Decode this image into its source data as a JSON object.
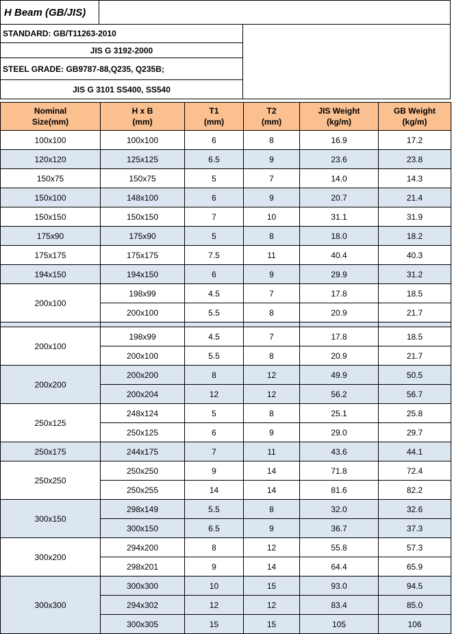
{
  "title": "H Beam (GB/JIS)",
  "standards": {
    "line1": "STANDARD:   GB/T11263-2010",
    "line2": "JIS G 3192-2000",
    "line3": "STEEL GRADE: GB9787-88,Q235, Q235B;",
    "line4": "JIS G 3101 SS400, SS540"
  },
  "headers": [
    [
      "Nominal",
      "Size(mm)"
    ],
    [
      "H x B",
      "(mm)"
    ],
    [
      "T1",
      "(mm)"
    ],
    [
      "T2",
      "(mm)"
    ],
    [
      "JIS Weight",
      "(kg/m)"
    ],
    [
      "GB Weight",
      "(kg/m)"
    ]
  ],
  "groups": [
    {
      "size": "100x100",
      "shade": false,
      "rows": [
        [
          "100x100",
          "6",
          "8",
          "16.9",
          "17.2"
        ]
      ]
    },
    {
      "size": "120x120",
      "shade": true,
      "rows": [
        [
          "125x125",
          "6.5",
          "9",
          "23.6",
          "23.8"
        ]
      ]
    },
    {
      "size": "150x75",
      "shade": false,
      "rows": [
        [
          "150x75",
          "5",
          "7",
          "14.0",
          "14.3"
        ]
      ]
    },
    {
      "size": "150x100",
      "shade": true,
      "rows": [
        [
          "148x100",
          "6",
          "9",
          "20.7",
          "21.4"
        ]
      ]
    },
    {
      "size": "150x150",
      "shade": false,
      "rows": [
        [
          "150x150",
          "7",
          "10",
          "31.1",
          "31.9"
        ]
      ]
    },
    {
      "size": "175x90",
      "shade": true,
      "rows": [
        [
          "175x90",
          "5",
          "8",
          "18.0",
          "18.2"
        ]
      ]
    },
    {
      "size": "175x175",
      "shade": false,
      "rows": [
        [
          "175x175",
          "7.5",
          "11",
          "40.4",
          "40.3"
        ]
      ]
    },
    {
      "size": "194x150",
      "shade": true,
      "rows": [
        [
          "194x150",
          "6",
          "9",
          "29.9",
          "31.2"
        ]
      ]
    },
    {
      "size": "200x100",
      "shade": false,
      "rows": [
        [
          "198x99",
          "4.5",
          "7",
          "17.8",
          "18.5"
        ],
        [
          "200x100",
          "5.5",
          "8",
          "20.9",
          "21.7"
        ]
      ]
    },
    {
      "gap": true
    },
    {
      "size": "200x100",
      "shade": false,
      "rows": [
        [
          "198x99",
          "4.5",
          "7",
          "17.8",
          "18.5"
        ],
        [
          "200x100",
          "5.5",
          "8",
          "20.9",
          "21.7"
        ]
      ]
    },
    {
      "size": "200x200",
      "shade": true,
      "rows": [
        [
          "200x200",
          "8",
          "12",
          "49.9",
          "50.5"
        ],
        [
          "200x204",
          "12",
          "12",
          "56.2",
          "56.7"
        ]
      ]
    },
    {
      "size": "250x125",
      "shade": false,
      "rows": [
        [
          "248x124",
          "5",
          "8",
          "25.1",
          "25.8"
        ],
        [
          "250x125",
          "6",
          "9",
          "29.0",
          "29.7"
        ]
      ]
    },
    {
      "size": "250x175",
      "shade": true,
      "rows": [
        [
          "244x175",
          "7",
          "11",
          "43.6",
          "44.1"
        ]
      ]
    },
    {
      "size": "250x250",
      "shade": false,
      "rows": [
        [
          "250x250",
          "9",
          "14",
          "71.8",
          "72.4"
        ],
        [
          "250x255",
          "14",
          "14",
          "81.6",
          "82.2"
        ]
      ]
    },
    {
      "size": "300x150",
      "shade": true,
      "rows": [
        [
          "298x149",
          "5.5",
          "8",
          "32.0",
          "32.6"
        ],
        [
          "300x150",
          "6.5",
          "9",
          "36.7",
          "37.3"
        ]
      ]
    },
    {
      "size": "300x200",
      "shade": false,
      "rows": [
        [
          "294x200",
          "8",
          "12",
          "55.8",
          "57.3"
        ],
        [
          "298x201",
          "9",
          "14",
          "64.4",
          "65.9"
        ]
      ]
    },
    {
      "size": "300x300",
      "shade": true,
      "rows": [
        [
          "300x300",
          "10",
          "15",
          "93.0",
          "94.5"
        ],
        [
          "294x302",
          "12",
          "12",
          "83.4",
          "85.0"
        ],
        [
          "300x305",
          "15",
          "15",
          "105",
          "106"
        ]
      ]
    }
  ]
}
